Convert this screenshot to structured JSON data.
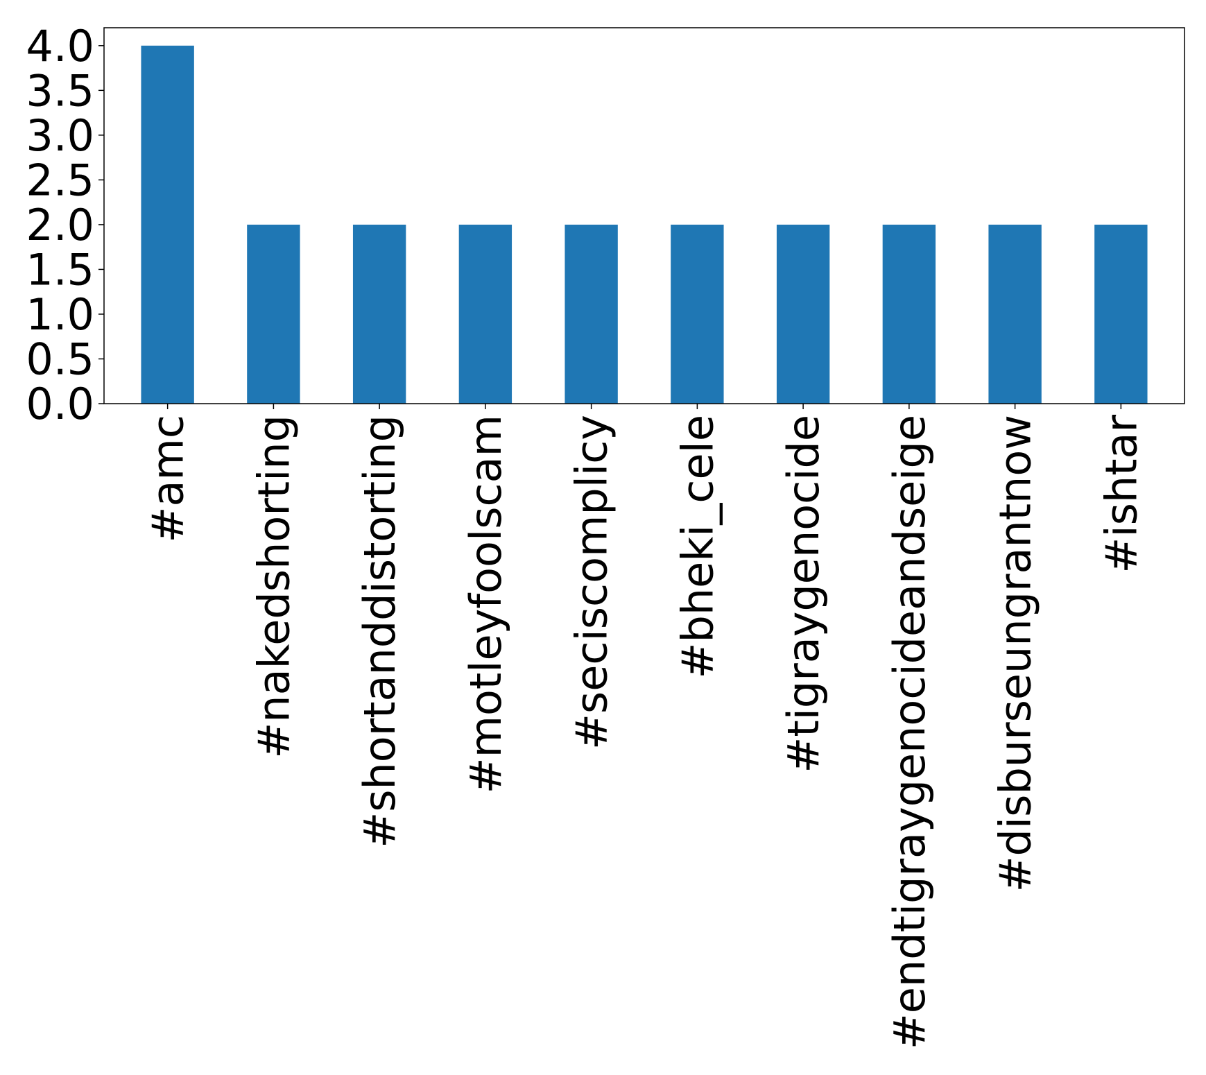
{
  "chart_data": {
    "type": "bar",
    "title": "",
    "xlabel": "",
    "ylabel": "",
    "categories": [
      "#amc",
      "#nakedshorting",
      "#shortanddistorting",
      "#motleyfoolscam",
      "#seciscomplicy",
      "#bheki_cele",
      "#tigraygenocide",
      "#endtigraygenocideandseige",
      "#disburseungrantnow",
      "#ishtar"
    ],
    "values": [
      4,
      2,
      2,
      2,
      2,
      2,
      2,
      2,
      2,
      2
    ],
    "ylim": [
      0,
      4.2
    ],
    "yticks": [
      "0.0",
      "0.5",
      "1.0",
      "1.5",
      "2.0",
      "2.5",
      "3.0",
      "3.5",
      "4.0"
    ],
    "bar_color": "#1f77b4",
    "grid": false,
    "legend": false
  }
}
